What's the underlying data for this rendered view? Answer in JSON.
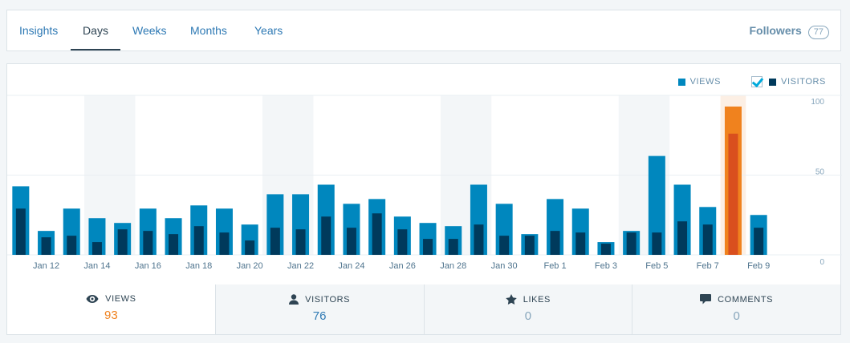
{
  "nav": {
    "tabs": [
      {
        "label": "Insights"
      },
      {
        "label": "Days",
        "active": true
      },
      {
        "label": "Weeks"
      },
      {
        "label": "Months"
      },
      {
        "label": "Years"
      }
    ],
    "followers_label": "Followers",
    "followers_count": "77"
  },
  "legend": {
    "views_label": "VIEWS",
    "visitors_label": "VISITORS",
    "visitors_checked": true
  },
  "colors": {
    "views": "#0087be",
    "visitors": "#003a5c",
    "highlight_views": "#f0821e",
    "highlight_visitors": "#d94f1e",
    "weekend_band": "#f3f6f8",
    "highlight_band": "#fcefe4"
  },
  "chart_data": {
    "type": "bar",
    "x_labels": [
      "Jan 12",
      "Jan 14",
      "Jan 16",
      "Jan 18",
      "Jan 20",
      "Jan 22",
      "Jan 24",
      "Jan 26",
      "Jan 28",
      "Jan 30",
      "Feb 1",
      "Feb 3",
      "Feb 5",
      "Feb 7",
      "Feb 9"
    ],
    "y_ticks": [
      "100",
      "50",
      "0"
    ],
    "ylim": [
      0,
      100
    ],
    "grid": true,
    "legend_position": "top-right",
    "highlight_index": 28,
    "weekend_band_indices": [
      [
        3,
        4
      ],
      [
        10,
        11
      ],
      [
        17,
        18
      ],
      [
        24,
        25
      ]
    ],
    "series": [
      {
        "name": "VIEWS",
        "values": [
          43,
          15,
          29,
          23,
          20,
          29,
          23,
          31,
          29,
          19,
          38,
          38,
          44,
          32,
          35,
          24,
          20,
          18,
          44,
          32,
          13,
          35,
          29,
          8,
          15,
          62,
          44,
          30,
          93,
          25
        ]
      },
      {
        "name": "VISITORS",
        "values": [
          29,
          11,
          12,
          8,
          16,
          15,
          13,
          18,
          14,
          9,
          17,
          16,
          24,
          17,
          26,
          16,
          10,
          10,
          19,
          12,
          12,
          15,
          14,
          7,
          14,
          14,
          21,
          19,
          76,
          17
        ]
      }
    ]
  },
  "stats": [
    {
      "label": "VIEWS",
      "value": "93",
      "icon": "eye-icon"
    },
    {
      "label": "VISITORS",
      "value": "76",
      "icon": "person-icon"
    },
    {
      "label": "LIKES",
      "value": "0",
      "icon": "star-icon"
    },
    {
      "label": "COMMENTS",
      "value": "0",
      "icon": "comment-icon"
    }
  ]
}
